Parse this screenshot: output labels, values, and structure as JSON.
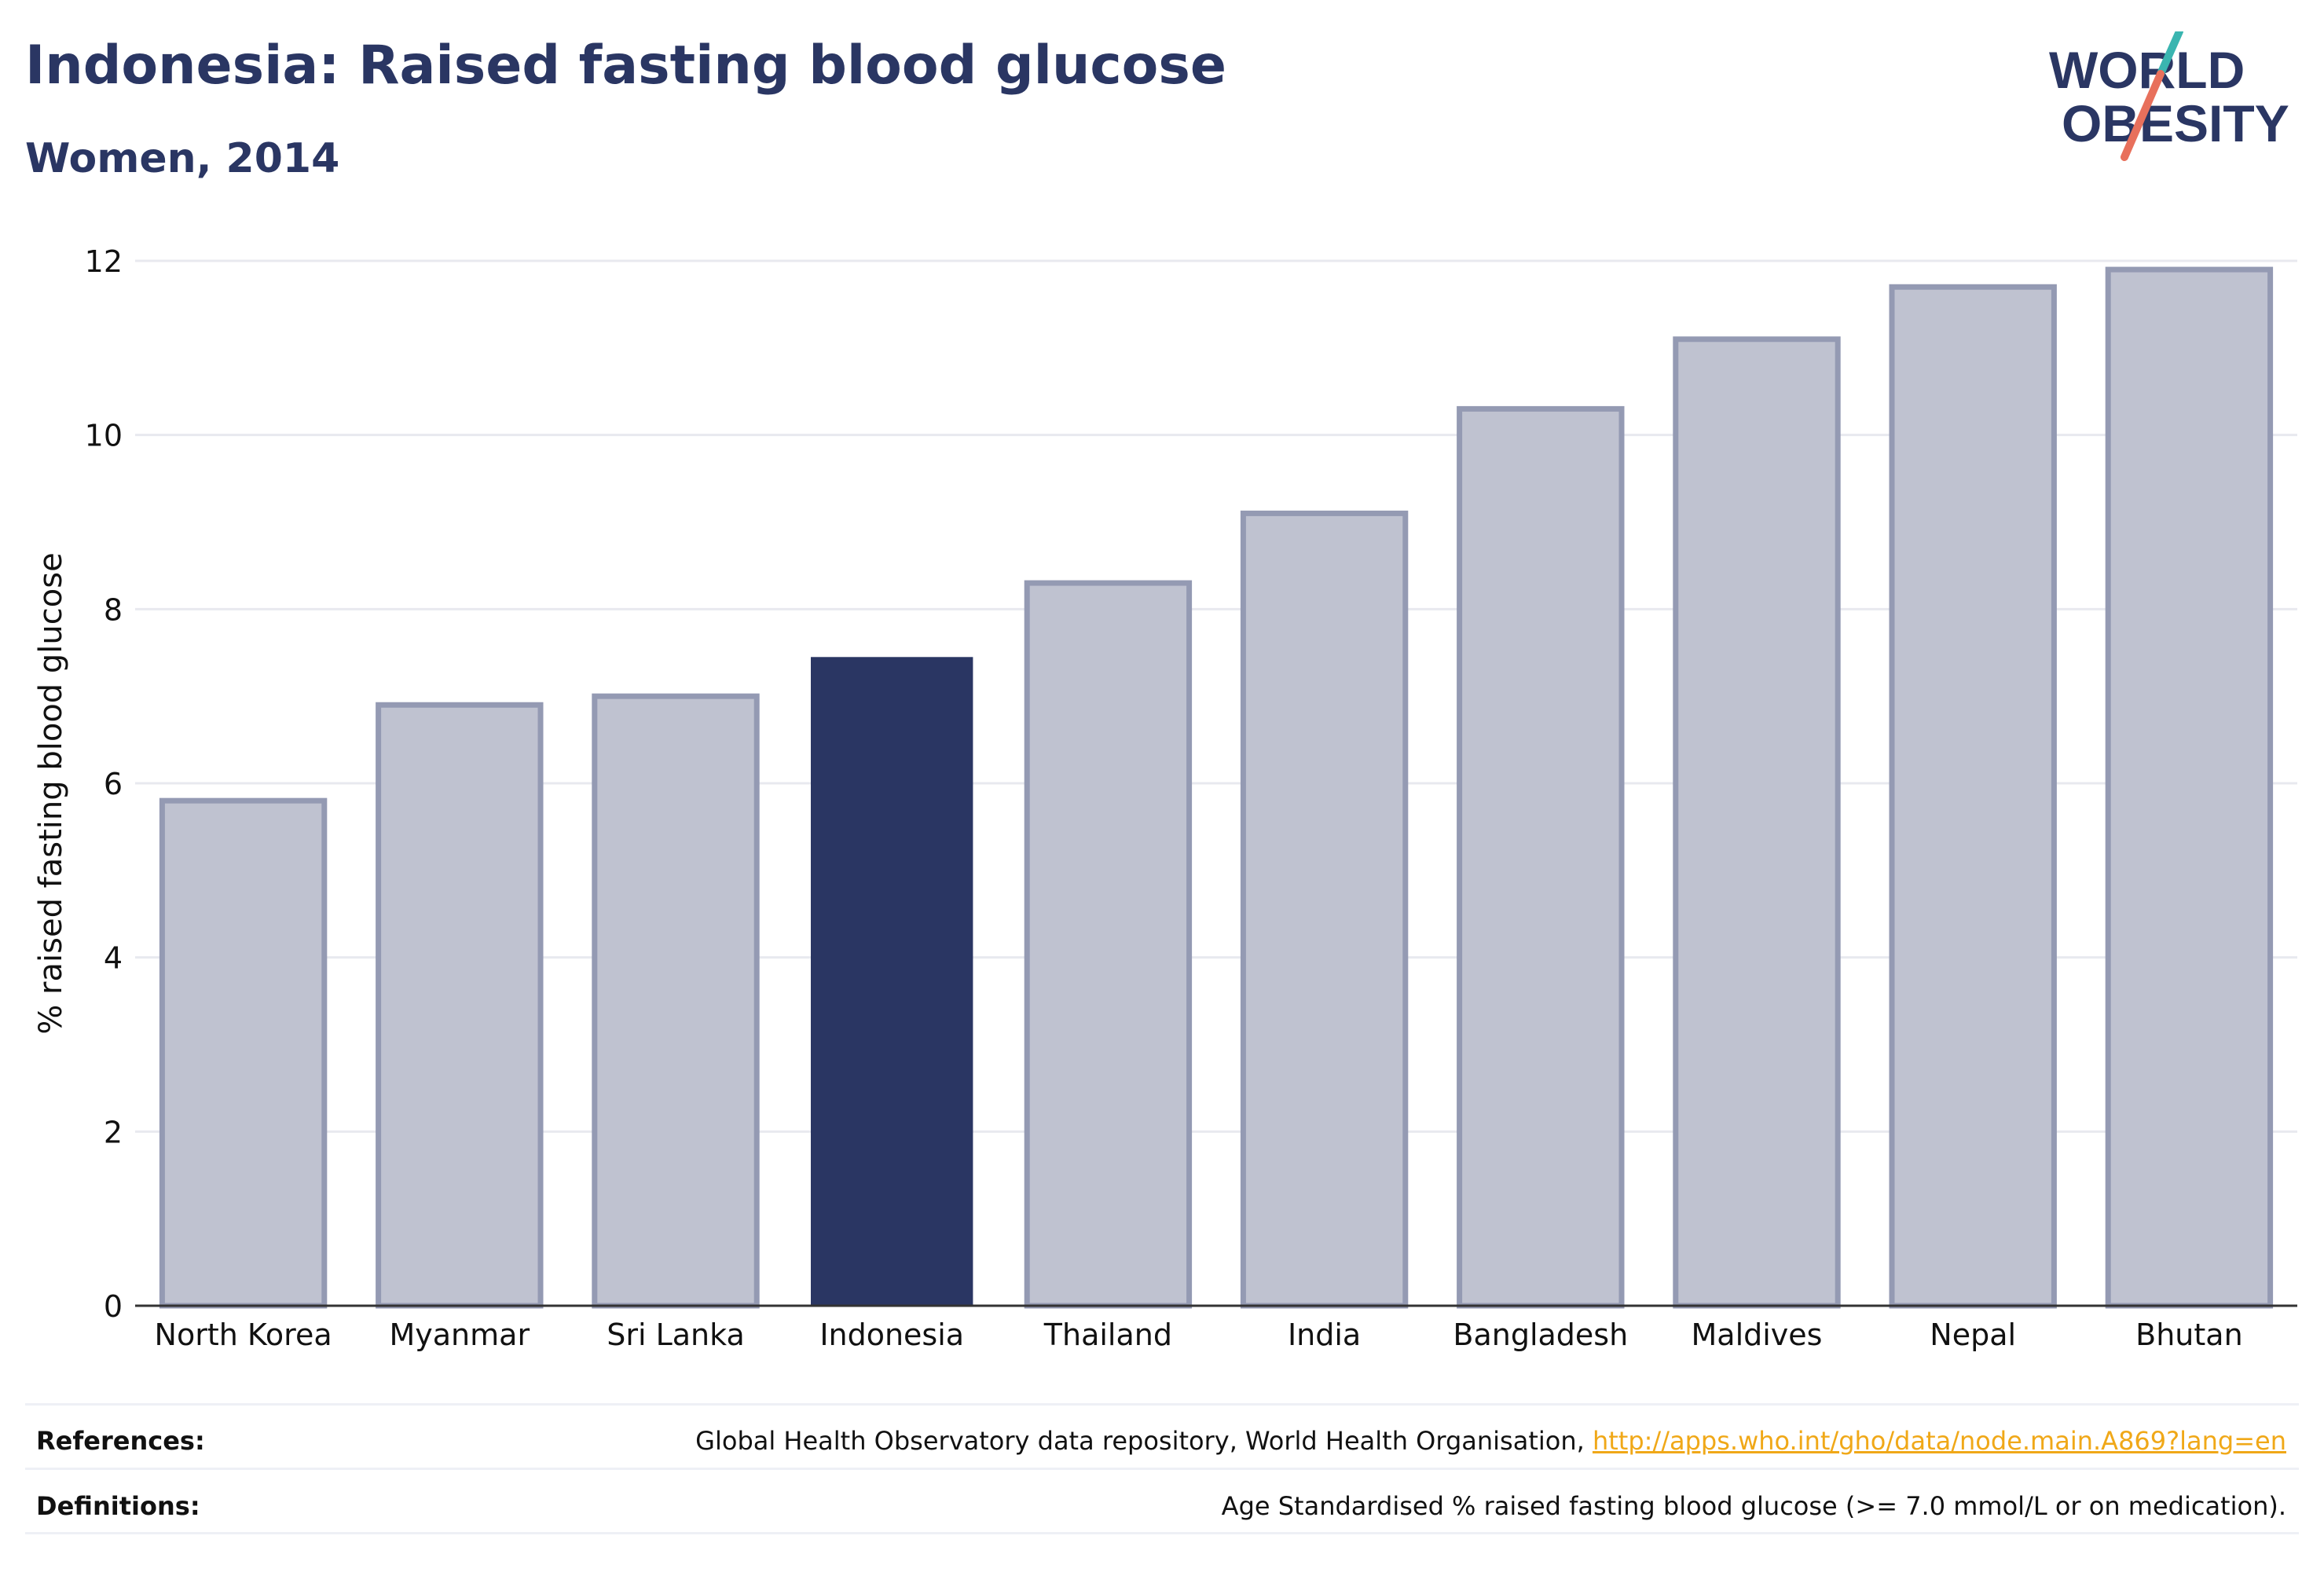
{
  "title": "Indonesia: Raised fasting blood glucose",
  "subtitle": "Women, 2014",
  "logo": {
    "line1": "WORLD",
    "line2": "OBESITY"
  },
  "colors": {
    "primary": "#2a3663",
    "bar_fill": "#bfc2d0",
    "bar_stroke": "#949ab3",
    "accent_teal": "#3ab5b0",
    "accent_coral": "#e8705c",
    "link": "#f0a818",
    "grid": "#e8e9ef"
  },
  "chart_data": {
    "type": "bar",
    "categories": [
      "North Korea",
      "Myanmar",
      "Sri Lanka",
      "Indonesia",
      "Thailand",
      "India",
      "Bangladesh",
      "Maldives",
      "Nepal",
      "Bhutan"
    ],
    "values": [
      5.8,
      6.9,
      7.0,
      7.45,
      8.3,
      9.1,
      10.3,
      11.1,
      11.7,
      11.9
    ],
    "highlight": "Indonesia",
    "ylabel": "% raised fasting blood glucose",
    "xlabel": "",
    "ylim": [
      0,
      12
    ],
    "yticks": [
      0,
      2,
      4,
      6,
      8,
      10,
      12
    ],
    "grid": true
  },
  "footer": {
    "references_label": "References:",
    "references_text": "Global Health Observatory data repository, World Health Organisation, ",
    "references_link": "http://apps.who.int/gho/data/node.main.A869?lang=en",
    "definitions_label": "Definitions:",
    "definitions_text": "Age Standardised % raised fasting blood glucose (>= 7.0 mmol/L or on medication)."
  }
}
